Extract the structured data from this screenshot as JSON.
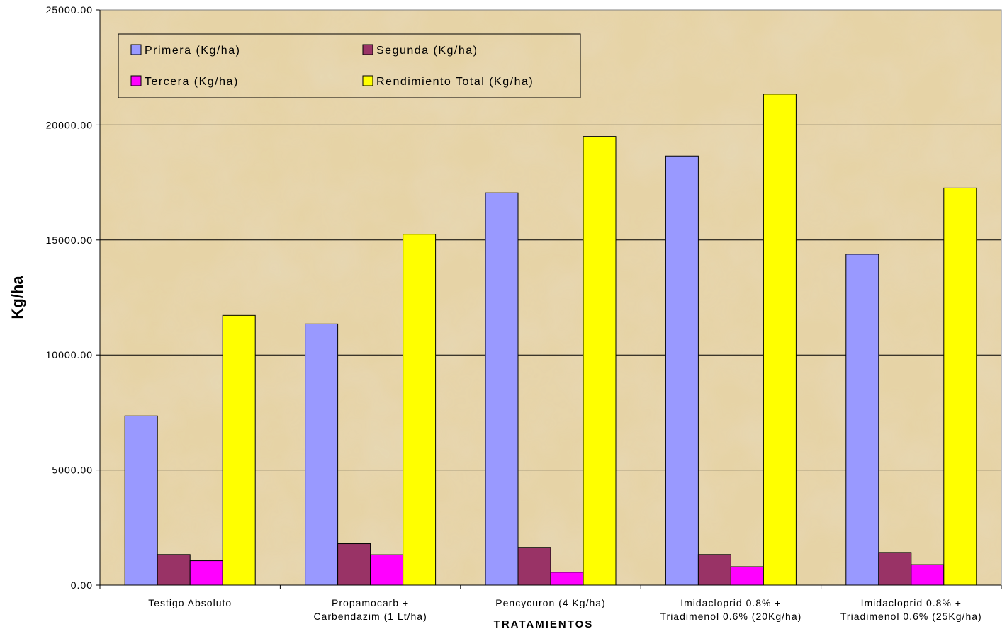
{
  "chart_data": {
    "type": "bar",
    "title": "",
    "xlabel": "TRATAMIENTOS",
    "ylabel": "Kg/ha",
    "ylim": [
      0,
      25000
    ],
    "yticks": [
      "0.00",
      "5000.00",
      "10000.00",
      "15000.00",
      "20000.00",
      "25000.00"
    ],
    "grid": true,
    "legend_position": "top-left",
    "categories": [
      [
        "Testigo Absoluto"
      ],
      [
        "Propamocarb +",
        "Carbendazim (1 Lt/ha)"
      ],
      [
        "Pencycuron (4 Kg/ha)"
      ],
      [
        "Imidacloprid 0.8% +",
        "Triadimenol 0.6% (20Kg/ha)"
      ],
      [
        "Imidacloprid 0.8% +",
        "Triadimenol 0.6% (25Kg/ha)"
      ]
    ],
    "series": [
      {
        "name": "Primera (Kg/ha)",
        "color": "#9999ff",
        "values": [
          7350,
          11350,
          17050,
          18650,
          14380
        ]
      },
      {
        "name": "Segunda (Kg/ha)",
        "color": "#993366",
        "values": [
          1330,
          1800,
          1640,
          1330,
          1420
        ]
      },
      {
        "name": "Tercera (Kg/ha)",
        "color": "#ff00ff",
        "values": [
          1060,
          1320,
          560,
          800,
          890
        ]
      },
      {
        "name": "Rendimiento Total (Kg/ha)",
        "color": "#ffff00",
        "values": [
          11720,
          15250,
          19500,
          21340,
          17260
        ]
      }
    ]
  }
}
